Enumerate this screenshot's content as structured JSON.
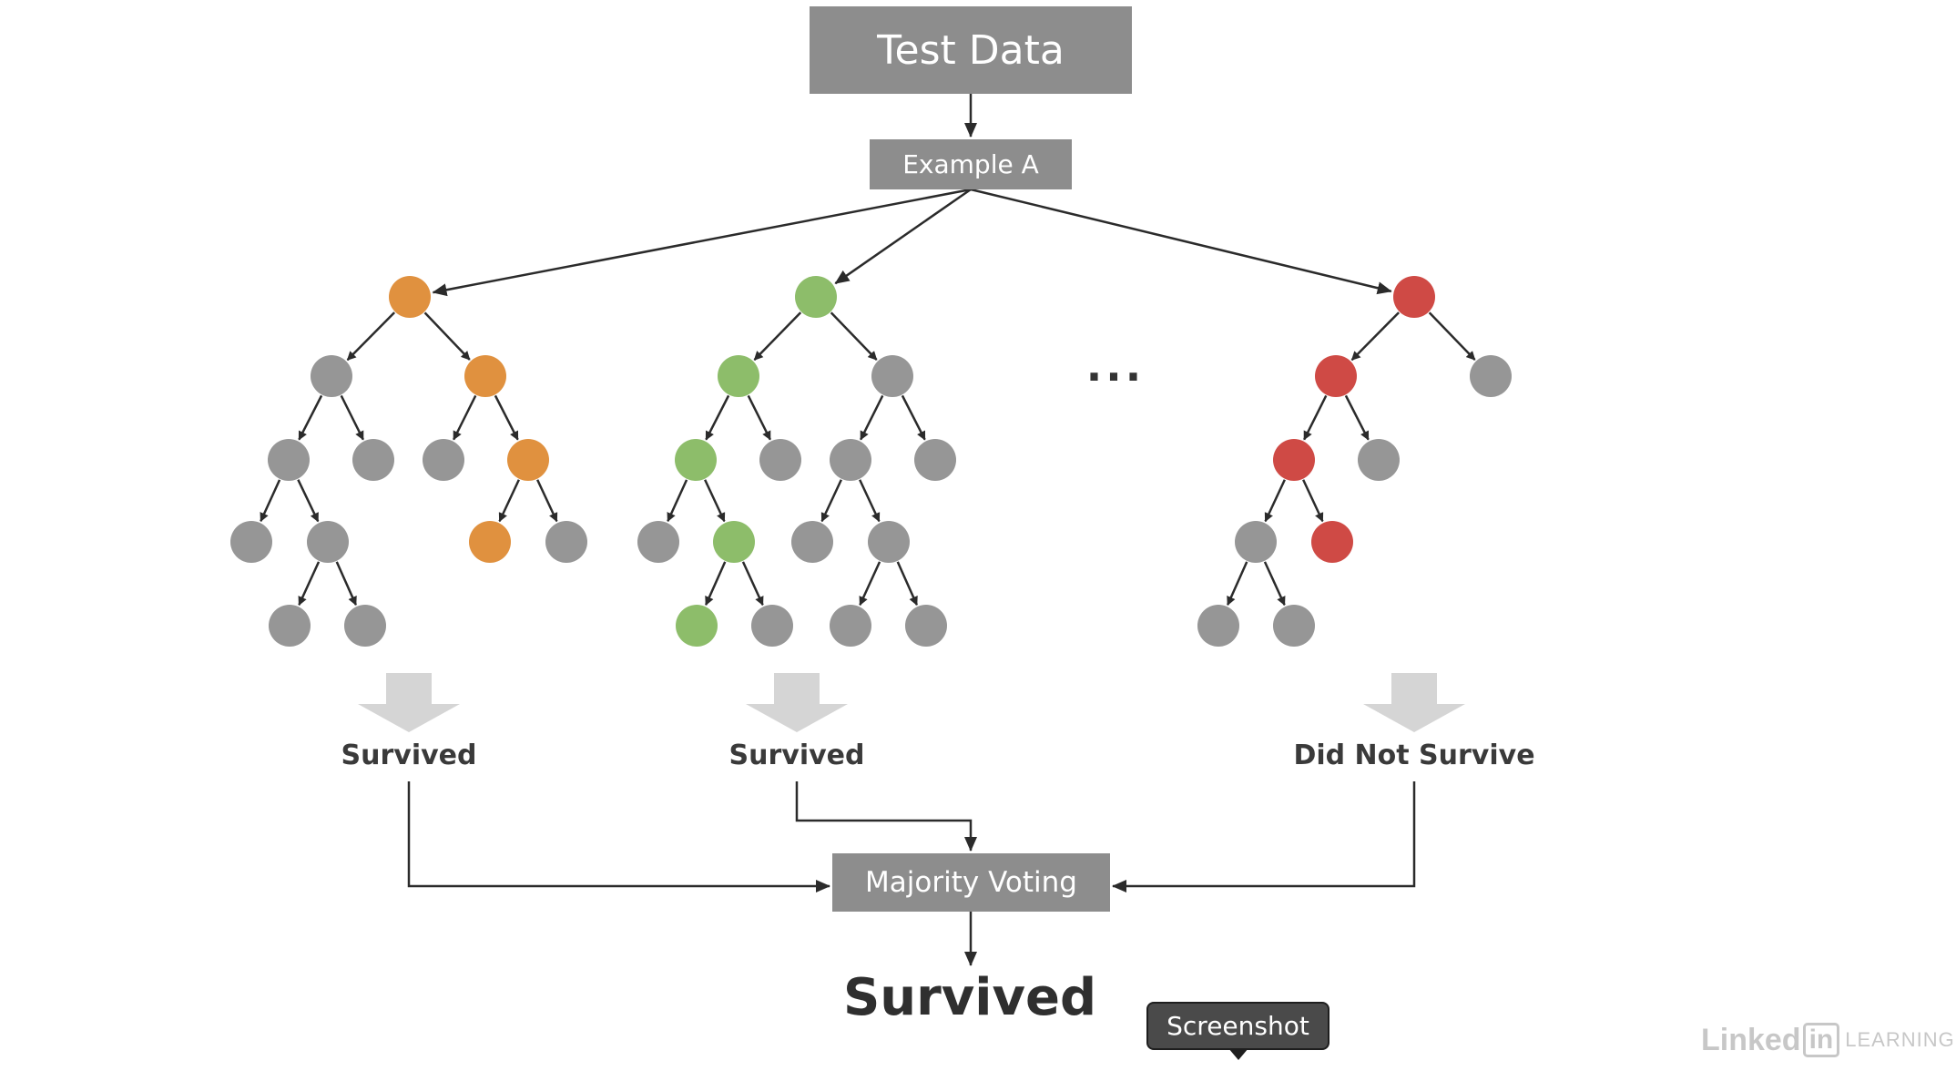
{
  "title_box": "Test Data",
  "example_box": "Example A",
  "trees": [
    {
      "output": "Survived",
      "path_color": "#e0913f"
    },
    {
      "output": "Survived",
      "path_color": "#8dbd6a"
    },
    {
      "output": "Did Not Survive",
      "path_color": "#cf4a45"
    }
  ],
  "ellipsis": "...",
  "aggregator_box": "Majority Voting",
  "final_output": "Survived",
  "tooltip": "Screenshot",
  "watermark": {
    "brand": "Linked",
    "brand_badge": "in",
    "suffix": "LEARNING"
  },
  "colors": {
    "node_gray": "#969696",
    "box_gray": "#8d8d8d",
    "arrow_gray": "#d5d5d5",
    "line": "#2b2b2b"
  }
}
